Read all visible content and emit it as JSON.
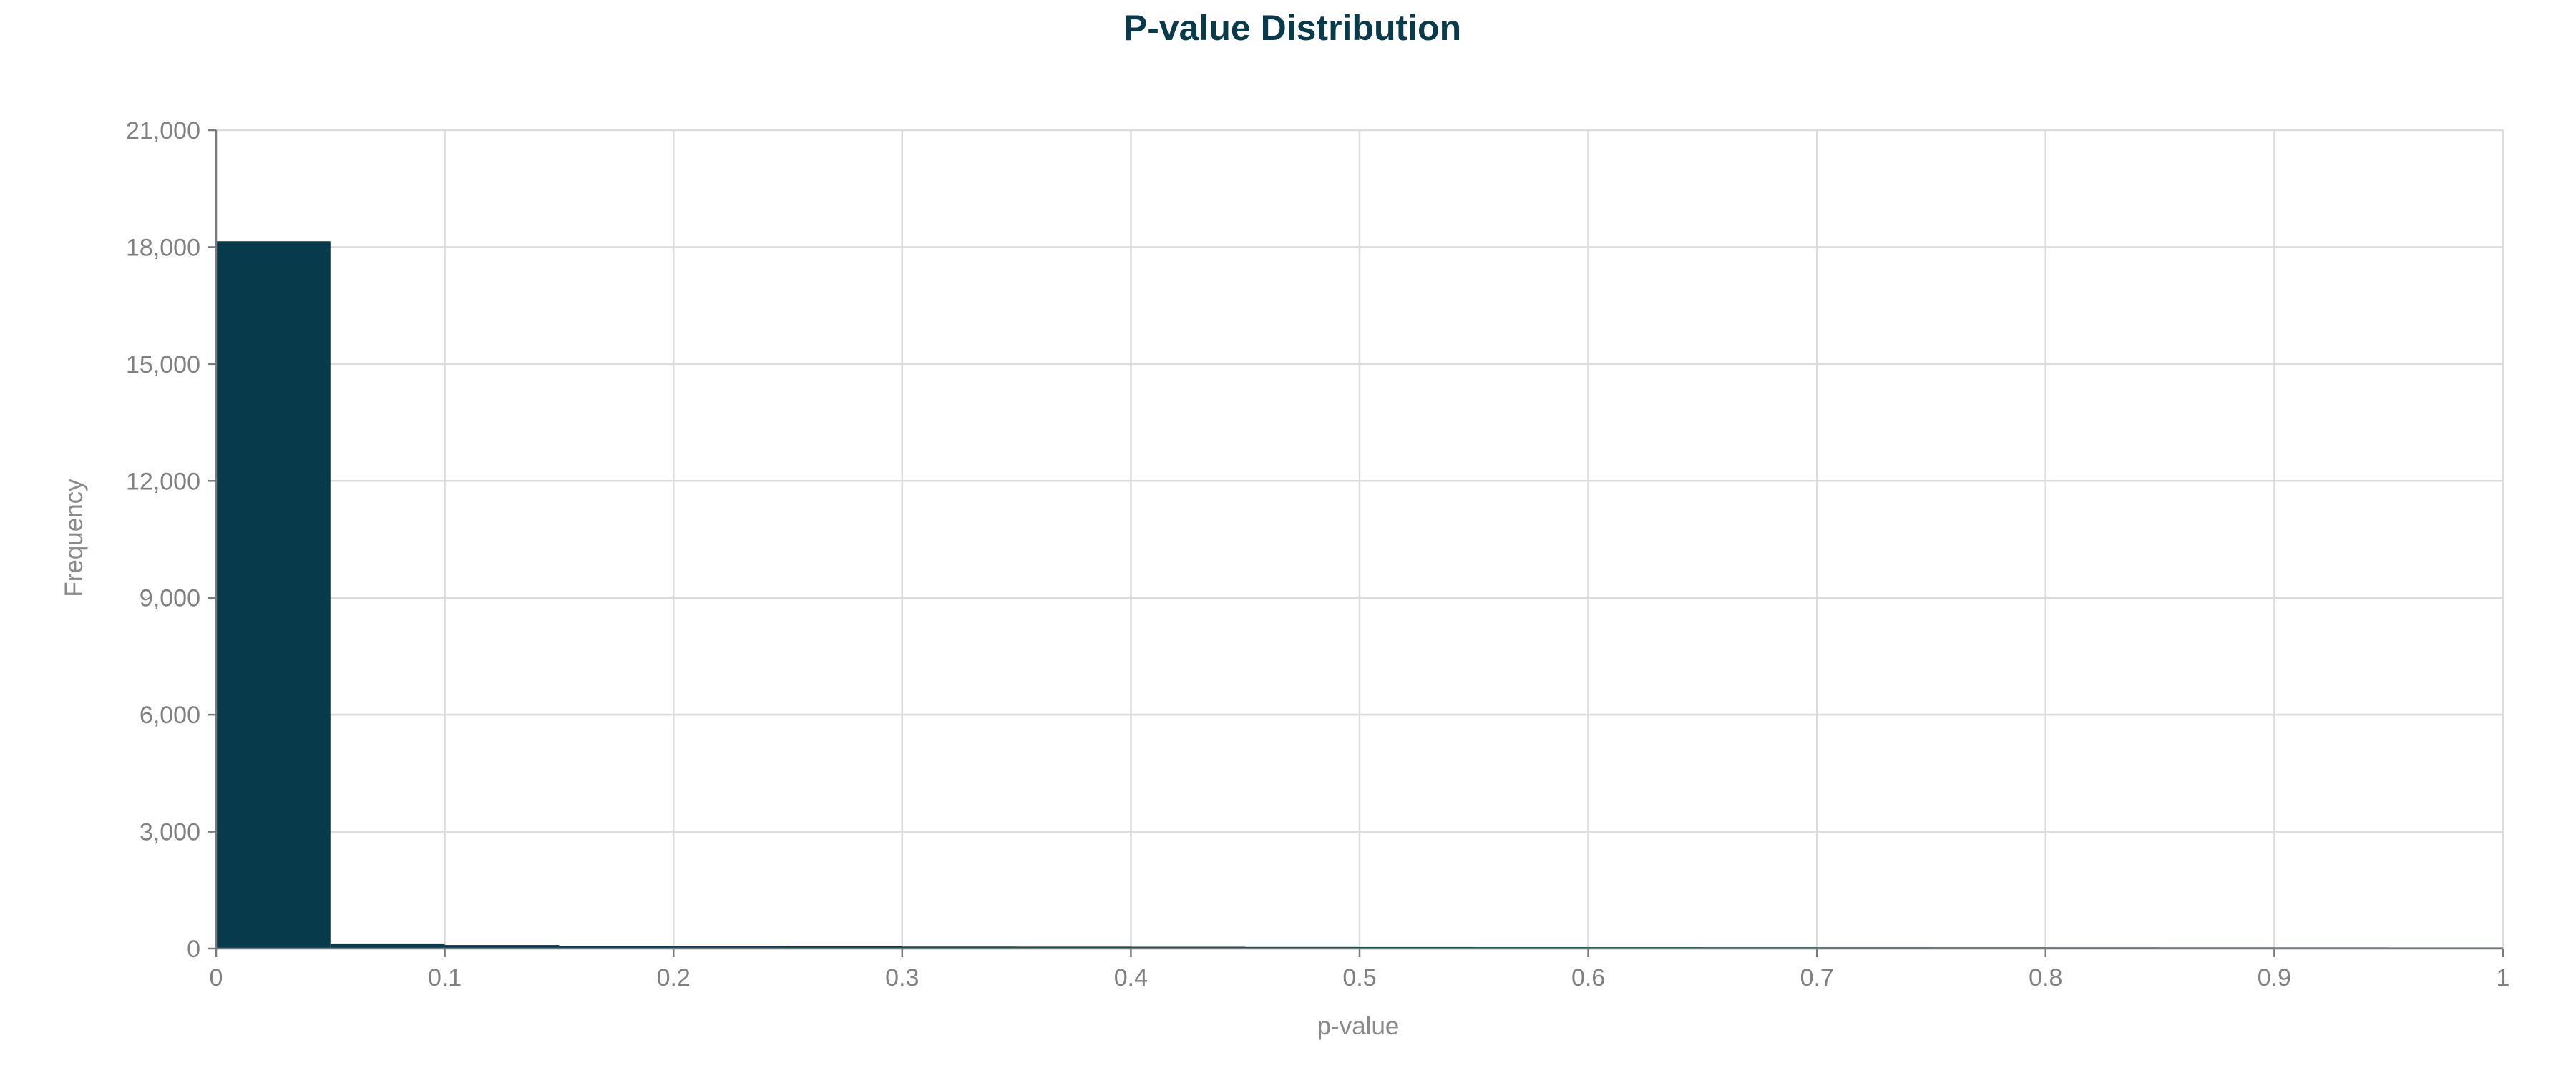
{
  "chart_data": {
    "type": "bar",
    "title": "P-value Distribution",
    "xlabel": "p-value",
    "ylabel": "Frequency",
    "xlim": [
      0,
      1
    ],
    "ylim": [
      0,
      21000
    ],
    "bin_width": 0.05,
    "bin_starts": [
      0,
      0.05,
      0.1,
      0.15,
      0.2,
      0.25,
      0.3,
      0.35,
      0.4,
      0.45,
      0.5,
      0.55,
      0.6,
      0.65,
      0.7,
      0.75,
      0.8,
      0.85,
      0.9,
      0.95
    ],
    "values": [
      18150,
      130,
      90,
      70,
      60,
      55,
      50,
      48,
      45,
      40,
      38,
      36,
      35,
      34,
      33,
      32,
      31,
      30,
      29,
      28
    ],
    "x_ticks": [
      0,
      0.1,
      0.2,
      0.3,
      0.4,
      0.5,
      0.6,
      0.7,
      0.8,
      0.9,
      1
    ],
    "x_tick_labels": [
      "0",
      "0.1",
      "0.2",
      "0.3",
      "0.4",
      "0.5",
      "0.6",
      "0.7",
      "0.8",
      "0.9",
      "1"
    ],
    "y_ticks": [
      0,
      3000,
      6000,
      9000,
      12000,
      15000,
      18000,
      21000
    ],
    "y_tick_labels": [
      "0",
      "3,000",
      "6,000",
      "9,000",
      "12,000",
      "15,000",
      "18,000",
      "21,000"
    ],
    "grid": true,
    "bar_color": "#073b4c",
    "legend": "none"
  }
}
